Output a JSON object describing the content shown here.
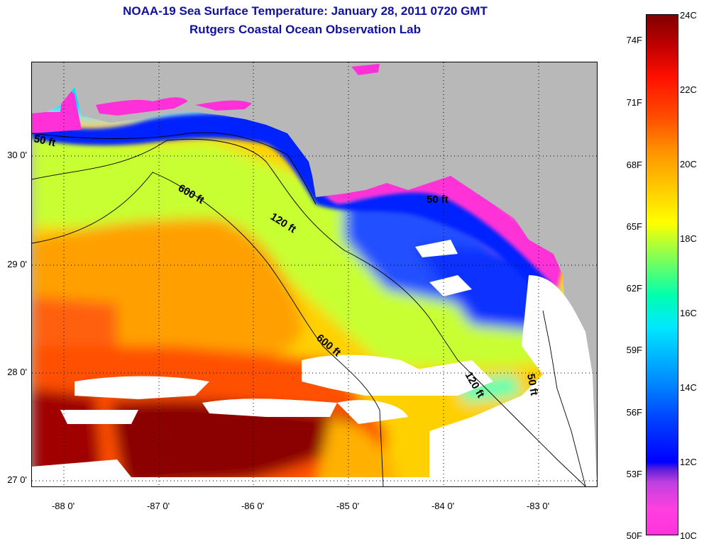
{
  "header": {
    "title": "NOAA-19 Sea Surface Temperature:  January 28, 2011 0720 GMT",
    "subtitle": "Rutgers Coastal Ocean Observation Lab"
  },
  "map": {
    "lat_labels": [
      "30 0'",
      "29 0'",
      "28 0'",
      "27 0'"
    ],
    "lon_labels": [
      "-88 0'",
      "-87 0'",
      "-86 0'",
      "-85 0'",
      "-84 0'",
      "-83 0'"
    ],
    "contour_labels": [
      "50 ft",
      "600 ft",
      "120 ft",
      "50 ft",
      "600 ft",
      "120 ft",
      "50 ft"
    ],
    "land_color": "#b8b8b8",
    "cloud_color": "#ffffff"
  },
  "colorbar": {
    "fahrenheit": [
      "74F",
      "71F",
      "68F",
      "65F",
      "62F",
      "59F",
      "56F",
      "53F",
      "50F"
    ],
    "celsius": [
      "24C",
      "22C",
      "20C",
      "18C",
      "16C",
      "14C",
      "12C",
      "10C"
    ]
  }
}
